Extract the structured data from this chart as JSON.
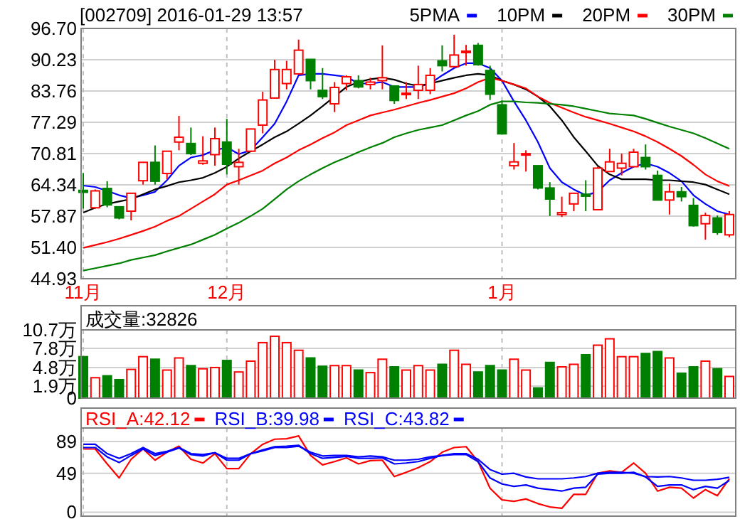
{
  "chart_data": [
    {
      "type": "candlestick",
      "title": "[002709] 2016-01-29 13:57",
      "legend": "top right",
      "grid": true,
      "categories": [
        "11月",
        null,
        null,
        null,
        null,
        null,
        null,
        null,
        null,
        null,
        null,
        null,
        "12月",
        null,
        null,
        null,
        null,
        null,
        null,
        null,
        null,
        null,
        null,
        null,
        null,
        null,
        null,
        null,
        null,
        null,
        null,
        null,
        null,
        null,
        null,
        "1月",
        null,
        null,
        null,
        null,
        null,
        null,
        null,
        null,
        null,
        null,
        null,
        null,
        null,
        null,
        null,
        null,
        null,
        null,
        null
      ],
      "ohlc": [
        [
          63.2,
          66.8,
          59.4,
          62.8
        ],
        [
          59.6,
          63.4,
          59.4,
          63.1
        ],
        [
          63.6,
          65.1,
          59.7,
          60.2
        ],
        [
          59.8,
          59.8,
          57.2,
          57.5
        ],
        [
          58.9,
          62.6,
          57.0,
          62.6
        ],
        [
          65.2,
          69.0,
          64.4,
          69.0
        ],
        [
          69.0,
          72.5,
          64.4,
          65.1
        ],
        [
          66.7,
          71.3,
          65.5,
          71.3
        ],
        [
          73.2,
          78.6,
          71.5,
          74.2
        ],
        [
          72.9,
          76.2,
          70.5,
          70.8
        ],
        [
          68.8,
          74.4,
          68.5,
          69.3
        ],
        [
          70.6,
          76.2,
          68.3,
          73.9
        ],
        [
          73.2,
          78.0,
          66.5,
          68.6
        ],
        [
          68.1,
          71.8,
          64.4,
          69.0
        ],
        [
          71.3,
          76.0,
          71.1,
          75.9
        ],
        [
          76.7,
          83.6,
          75.0,
          81.9
        ],
        [
          82.3,
          90.2,
          82.3,
          88.2
        ],
        [
          85.3,
          90.0,
          84.1,
          88.2
        ],
        [
          87.3,
          94.4,
          87.3,
          92.2
        ],
        [
          90.3,
          90.3,
          84.1,
          85.9
        ],
        [
          83.9,
          88.5,
          82.1,
          82.6
        ],
        [
          81.1,
          85.6,
          79.4,
          84.5
        ],
        [
          85.3,
          87.0,
          83.9,
          86.7
        ],
        [
          85.9,
          87.0,
          84.3,
          84.6
        ],
        [
          85.1,
          86.5,
          84.1,
          85.6
        ],
        [
          85.9,
          93.2,
          84.1,
          86.5
        ],
        [
          84.8,
          84.8,
          81.1,
          81.8
        ],
        [
          83.1,
          85.6,
          82.1,
          83.3
        ],
        [
          83.9,
          89.0,
          82.1,
          85.1
        ],
        [
          83.9,
          88.5,
          83.1,
          87.0
        ],
        [
          90.0,
          93.2,
          87.8,
          89.0
        ],
        [
          88.8,
          95.4,
          88.8,
          91.2
        ],
        [
          91.8,
          93.3,
          89.0,
          92.0
        ],
        [
          93.2,
          93.7,
          89.0,
          89.2
        ],
        [
          88.0,
          89.0,
          81.9,
          83.1
        ],
        [
          80.9,
          81.8,
          74.9,
          74.9
        ],
        [
          68.3,
          73.0,
          67.5,
          69.1
        ],
        [
          70.6,
          71.5,
          67.1,
          70.8
        ],
        [
          68.3,
          68.3,
          63.4,
          63.7
        ],
        [
          63.7,
          64.9,
          57.9,
          61.4
        ],
        [
          58.2,
          61.9,
          57.7,
          58.6
        ],
        [
          60.4,
          62.6,
          58.9,
          62.6
        ],
        [
          62.4,
          65.3,
          58.9,
          62.0
        ],
        [
          59.2,
          68.1,
          59.2,
          67.8
        ],
        [
          67.1,
          71.8,
          67.1,
          69.1
        ],
        [
          67.8,
          70.8,
          66.3,
          68.8
        ],
        [
          68.1,
          71.8,
          68.1,
          71.1
        ],
        [
          70.0,
          72.7,
          67.5,
          68.1
        ],
        [
          66.3,
          67.3,
          61.2,
          61.2
        ],
        [
          61.2,
          64.6,
          58.2,
          62.9
        ],
        [
          62.9,
          63.9,
          60.9,
          61.9
        ],
        [
          60.1,
          61.6,
          55.7,
          55.9
        ],
        [
          56.3,
          58.6,
          53.0,
          58.0
        ],
        [
          57.5,
          58.0,
          54.0,
          54.5
        ],
        [
          54.0,
          58.9,
          53.5,
          58.2
        ]
      ],
      "series": [
        {
          "name": "5PMA",
          "type": "line",
          "color": "#0000ff",
          "values": [
            64.2,
            63.9,
            63.1,
            62.2,
            61.6,
            62.2,
            62.9,
            65.3,
            68.3,
            70.0,
            70.5,
            71.5,
            72.1,
            70.7,
            71.5,
            74.2,
            77.0,
            81.6,
            87.0,
            87.3,
            87.3,
            87.0,
            86.7,
            85.3,
            85.3,
            85.6,
            84.6,
            84.6,
            84.6,
            85.3,
            87.0,
            88.5,
            89.5,
            89.5,
            88.5,
            85.9,
            81.6,
            77.7,
            73.2,
            67.8,
            64.9,
            63.4,
            62.2,
            62.9,
            65.3,
            66.8,
            68.1,
            68.8,
            68.1,
            66.8,
            65.1,
            62.2,
            60.4,
            58.9,
            58.2
          ]
        },
        {
          "name": "10PM",
          "type": "line",
          "color": "#000000",
          "values": [
            58.6,
            59.6,
            60.4,
            60.9,
            61.4,
            62.4,
            63.4,
            64.1,
            64.9,
            65.3,
            65.8,
            66.8,
            68.1,
            69.8,
            71.3,
            72.7,
            74.2,
            75.4,
            77.0,
            78.7,
            80.6,
            82.6,
            84.6,
            85.6,
            86.2,
            86.5,
            86.1,
            85.3,
            84.8,
            85.3,
            85.9,
            86.5,
            87.0,
            87.3,
            87.0,
            85.9,
            85.1,
            84.1,
            82.6,
            80.6,
            77.7,
            74.2,
            71.3,
            68.3,
            66.5,
            65.5,
            65.5,
            65.5,
            65.3,
            65.3,
            65.1,
            64.9,
            64.4,
            63.4,
            62.4
          ]
        },
        {
          "name": "20PM",
          "type": "line",
          "color": "#ff0000",
          "values": [
            51.3,
            51.9,
            52.5,
            53.2,
            54.0,
            54.8,
            55.7,
            56.9,
            57.9,
            59.4,
            60.9,
            62.4,
            64.4,
            65.3,
            66.3,
            67.3,
            68.8,
            70.0,
            71.5,
            72.7,
            74.0,
            75.2,
            76.7,
            77.7,
            78.7,
            79.3,
            79.9,
            80.6,
            81.3,
            81.9,
            82.6,
            83.3,
            84.3,
            85.6,
            86.5,
            85.9,
            85.1,
            84.3,
            82.6,
            81.3,
            80.3,
            79.3,
            78.4,
            77.7,
            77.0,
            76.2,
            75.4,
            74.4,
            73.2,
            71.8,
            70.3,
            68.5,
            66.5,
            65.1,
            64.1
          ]
        },
        {
          "name": "30PM",
          "type": "line",
          "color": "#008000",
          "values": [
            46.6,
            47.1,
            47.6,
            48.1,
            48.8,
            49.3,
            49.8,
            50.6,
            51.3,
            52.0,
            53.0,
            54.0,
            55.3,
            56.5,
            57.9,
            59.4,
            61.4,
            63.4,
            65.1,
            66.5,
            67.8,
            69.0,
            70.0,
            71.1,
            72.1,
            73.0,
            74.2,
            75.0,
            75.7,
            76.2,
            76.7,
            77.7,
            78.7,
            79.6,
            80.9,
            81.6,
            81.6,
            81.4,
            81.3,
            81.1,
            80.9,
            80.6,
            80.1,
            79.6,
            79.1,
            78.9,
            78.7,
            78.0,
            77.2,
            76.4,
            75.7,
            75.0,
            74.0,
            72.9,
            71.8
          ]
        }
      ],
      "ylim": [
        44.93,
        96.7
      ],
      "yticks": [
        44.93,
        {
          "value": 51.4,
          "label": "51.40"
        },
        57.87,
        64.34,
        70.81,
        77.29,
        83.76,
        90.23,
        {
          "value": 96.7,
          "label": "96.70"
        }
      ]
    },
    {
      "type": "bar",
      "title": "成交量:32826",
      "grid": true,
      "tick_labels": "y",
      "categories": [
        null,
        null,
        null,
        null,
        null,
        null,
        null,
        null,
        null,
        null,
        null,
        null,
        null,
        null,
        null,
        null,
        null,
        null,
        null,
        null,
        null,
        null,
        null,
        null,
        null,
        null,
        null,
        null,
        null,
        null,
        null,
        null,
        null,
        null,
        null,
        null,
        null,
        null,
        null,
        null,
        null,
        null,
        null,
        null,
        null,
        null,
        null,
        null,
        null,
        null,
        null,
        null,
        null,
        null,
        null
      ],
      "values": [
        6.5,
        3.2,
        3.5,
        2.9,
        4.5,
        6.5,
        6.1,
        4.4,
        6.3,
        5.1,
        4.6,
        4.8,
        5.9,
        4.1,
        5.8,
        8.7,
        9.7,
        8.7,
        7.5,
        6.3,
        5.0,
        5.1,
        5.1,
        4.4,
        4.0,
        6.1,
        4.9,
        4.4,
        5.1,
        4.4,
        5.3,
        7.5,
        5.3,
        4.1,
        5.1,
        4.4,
        6.1,
        4.4,
        1.6,
        5.6,
        4.9,
        5.3,
        6.8,
        8.3,
        9.3,
        6.5,
        6.5,
        7.0,
        7.3,
        6.3,
        3.9,
        4.9,
        5.8,
        4.6,
        3.4
      ],
      "colors": [
        "#008000",
        "#ff0000",
        "#008000",
        "#008000",
        "#ff0000",
        "#ff0000",
        "#008000",
        "#ff0000",
        "#ff0000",
        "#008000",
        "#ff0000",
        "#ff0000",
        "#008000",
        "#ff0000",
        "#ff0000",
        "#ff0000",
        "#ff0000",
        "#ff0000",
        "#ff0000",
        "#008000",
        "#008000",
        "#ff0000",
        "#ff0000",
        "#008000",
        "#ff0000",
        "#ff0000",
        "#008000",
        "#ff0000",
        "#ff0000",
        "#ff0000",
        "#008000",
        "#ff0000",
        "#ff0000",
        "#008000",
        "#008000",
        "#008000",
        "#ff0000",
        "#ff0000",
        "#008000",
        "#008000",
        "#ff0000",
        "#ff0000",
        "#008000",
        "#ff0000",
        "#ff0000",
        "#ff0000",
        "#ff0000",
        "#008000",
        "#008000",
        "#ff0000",
        "#008000",
        "#008000",
        "#ff0000",
        "#008000",
        "#ff0000"
      ],
      "ylim": [
        0,
        10.7
      ],
      "yticks": [
        0,
        {
          "value": 1.9,
          "label": "1.9万"
        },
        {
          "value": 4.8,
          "label": "4.8万"
        },
        {
          "value": 7.8,
          "label": "7.8万"
        },
        {
          "value": 10.7,
          "label": "10.7万"
        }
      ]
    },
    {
      "type": "line",
      "grid": true,
      "tick_labels": "y",
      "legend": "top left",
      "categories": [
        null,
        null,
        null,
        null,
        null,
        null,
        null,
        null,
        null,
        null,
        null,
        null,
        null,
        null,
        null,
        null,
        null,
        null,
        null,
        null,
        null,
        null,
        null,
        null,
        null,
        null,
        null,
        null,
        null,
        null,
        null,
        null,
        null,
        null,
        null,
        null,
        null,
        null,
        null,
        null,
        null,
        null,
        null,
        null,
        null,
        null,
        null,
        null,
        null,
        null,
        null,
        null,
        null,
        null,
        null
      ],
      "series": [
        {
          "name": "RSI_A:42.12",
          "color": "#ff0000",
          "values": [
            79.6,
            79.6,
            60.8,
            43.1,
            66.6,
            79.6,
            65.5,
            75.5,
            83.1,
            66.6,
            61.9,
            73.7,
            54.9,
            54.9,
            73.7,
            85.5,
            91.9,
            92.5,
            96.1,
            71.4,
            59.6,
            63.7,
            68.4,
            60.8,
            64.9,
            65.5,
            44.9,
            50.2,
            56.1,
            63.7,
            75.5,
            81.4,
            82.5,
            63.7,
            30.2,
            15.5,
            13.7,
            16.6,
            10.8,
            6.6,
            4.9,
            22.5,
            22.5,
            49.0,
            52.0,
            50.2,
            61.9,
            49.0,
            26.6,
            31.4,
            30.2,
            17.8,
            28.4,
            20.8,
            42.12
          ]
        },
        {
          "name": "RSI_B:39.98",
          "color": "#0000ff",
          "values": [
            81.4,
            81.4,
            69.6,
            62.5,
            71.4,
            79.6,
            71.4,
            75.5,
            80.8,
            72.5,
            70.8,
            74.9,
            65.5,
            65.5,
            73.7,
            78.4,
            82.5,
            83.1,
            84.3,
            73.7,
            67.8,
            69.0,
            70.2,
            67.8,
            67.8,
            68.4,
            60.8,
            61.9,
            63.7,
            67.8,
            71.4,
            72.5,
            72.5,
            63.7,
            43.1,
            35.5,
            32.5,
            34.3,
            30.2,
            28.4,
            26.6,
            30.2,
            31.4,
            47.8,
            49.0,
            49.0,
            50.2,
            44.3,
            32.5,
            34.3,
            34.3,
            28.4,
            32.5,
            30.2,
            39.98
          ]
        },
        {
          "name": "RSI_C:43.82",
          "color": "#0000ff",
          "values": [
            85.5,
            85.5,
            73.7,
            67.8,
            73.7,
            81.4,
            73.7,
            76.6,
            81.4,
            73.7,
            72.5,
            74.9,
            67.8,
            67.8,
            73.7,
            77.2,
            81.4,
            81.4,
            83.1,
            75.5,
            70.8,
            71.4,
            71.4,
            69.6,
            70.8,
            69.6,
            65.5,
            65.5,
            66.6,
            69.6,
            71.4,
            73.7,
            73.7,
            66.6,
            53.7,
            47.8,
            49.0,
            44.3,
            42.0,
            42.0,
            42.0,
            43.1,
            44.9,
            49.0,
            50.2,
            50.2,
            49.0,
            44.9,
            44.3,
            44.9,
            43.1,
            40.2,
            40.2,
            41.4,
            43.82
          ]
        }
      ],
      "ylim": [
        -5,
        106
      ],
      "yticks": [
        0,
        49,
        89
      ]
    }
  ]
}
